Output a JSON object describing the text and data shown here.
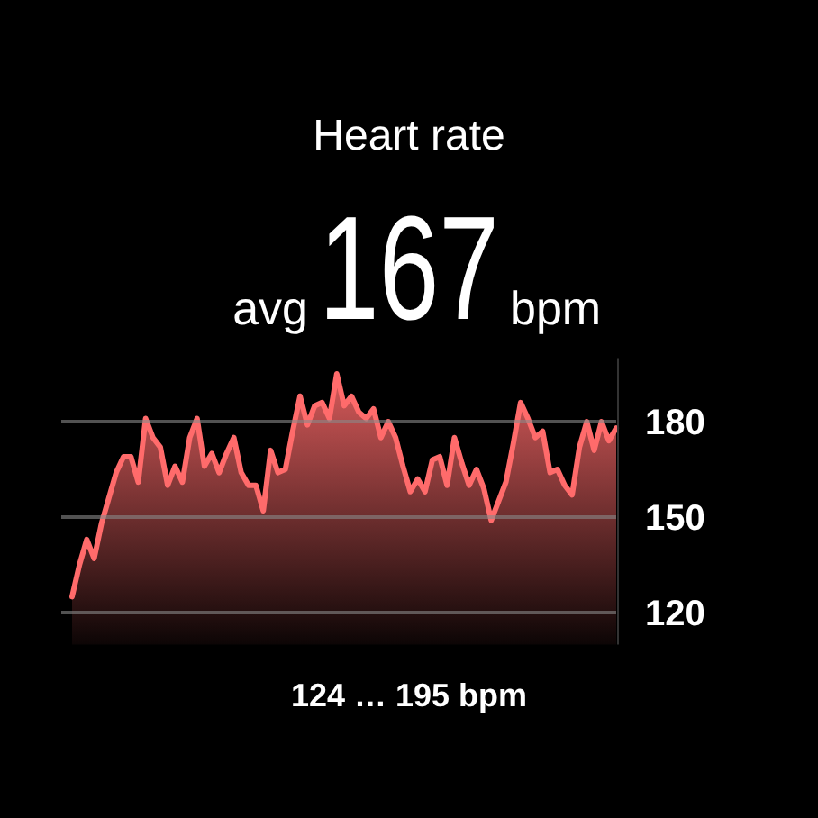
{
  "chart_data": {
    "type": "area",
    "title": "Heart rate",
    "annotations": [
      "avg",
      "167",
      "bpm",
      "124 … 195 bpm"
    ],
    "categories": [
      null,
      null,
      null,
      null,
      null,
      null,
      null,
      null,
      null,
      null,
      null,
      null,
      null,
      null,
      null,
      null,
      null,
      null,
      null,
      null,
      null,
      null,
      null,
      null,
      null,
      null,
      null,
      null,
      null,
      null,
      null,
      null,
      null,
      null,
      null,
      null,
      null,
      null,
      null,
      null,
      null,
      null,
      null,
      null,
      null,
      null,
      null,
      null,
      null,
      null,
      null,
      null,
      null,
      null,
      null,
      null,
      null,
      null,
      null,
      null,
      null,
      null,
      null,
      null,
      null,
      null,
      null,
      null,
      null,
      null,
      null,
      null,
      null,
      null,
      null
    ],
    "series": [
      {
        "color": "#ff6b6b",
        "values": [
          125,
          135,
          143,
          137,
          148,
          156,
          164,
          169,
          169,
          161,
          181,
          175,
          172,
          160,
          166,
          161,
          175,
          181,
          166,
          170,
          164,
          170,
          175,
          164,
          160,
          160,
          152,
          171,
          164,
          165,
          177,
          188,
          179,
          185,
          186,
          181,
          195,
          185,
          188,
          183,
          181,
          184,
          175,
          180,
          175,
          166,
          158,
          162,
          158,
          168,
          169,
          160,
          175,
          167,
          160,
          165,
          159,
          149,
          155,
          161,
          173,
          186,
          181,
          175,
          177,
          164,
          165,
          160,
          157,
          172,
          180,
          171,
          180,
          174,
          178
        ]
      }
    ],
    "ylim": [
      110,
      200
    ],
    "yticks": [
      120,
      150,
      180
    ],
    "grid": "y"
  }
}
